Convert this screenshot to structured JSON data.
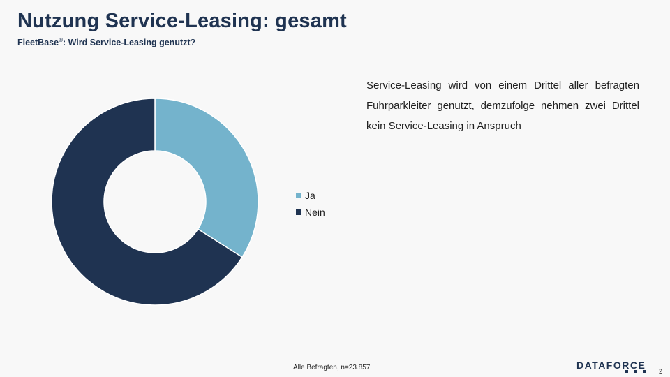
{
  "header": {
    "title": "Nutzung Service-Leasing: gesamt",
    "subtitle_main": "FleetBase",
    "subtitle_sup": "®",
    "subtitle_rest": ": Wird Service-Leasing genutzt?"
  },
  "chart_data": {
    "type": "pie",
    "variant": "donut",
    "categories": [
      "Ja",
      "Nein"
    ],
    "values": [
      34,
      66
    ],
    "colors": [
      "#74b3cc",
      "#1f3351"
    ],
    "legend_position": "right"
  },
  "summary": "Service-Leasing wird von einem Drittel aller befragten Fuhrparkleiter genutzt, demzufolge nehmen zwei Drittel kein Service-Leasing in Anspruch",
  "footer": {
    "note": "Alle Befragten, n=23.857",
    "logo_text": "DATAFORCE",
    "page_number": "2"
  }
}
